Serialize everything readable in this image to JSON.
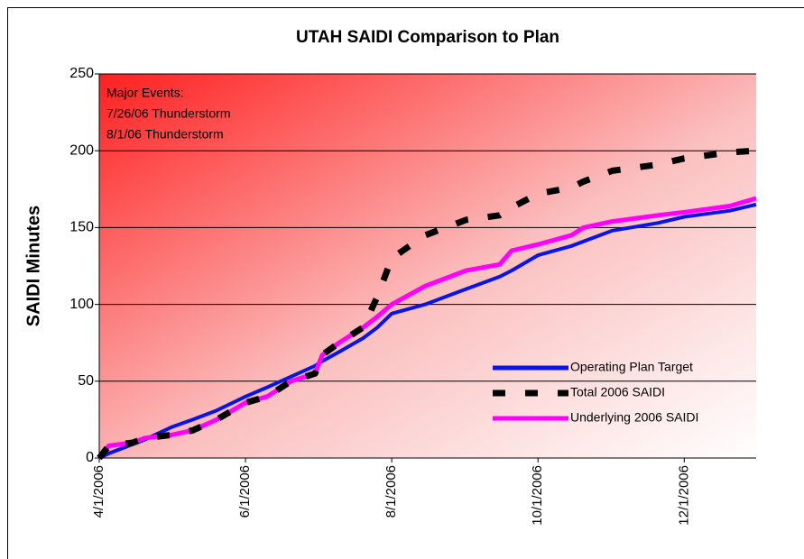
{
  "chart_data": {
    "type": "line",
    "title": "UTAH SAIDI Comparison to Plan",
    "ylabel": "SAIDI Minutes",
    "annotations": [
      "Major Events:",
      "7/26/06 Thunderstorm",
      "8/1/06 Thunderstorm"
    ],
    "x": [
      "4/1/2006",
      "4/5/2006",
      "4/15/2006",
      "4/20/2006",
      "5/1/2006",
      "5/10/2006",
      "5/20/2006",
      "6/1/2006",
      "6/10/2006",
      "6/20/2006",
      "6/30/2006",
      "7/3/2006",
      "7/10/2006",
      "7/20/2006",
      "7/26/2006",
      "8/1/2006",
      "8/15/2006",
      "9/1/2006",
      "9/15/2006",
      "9/20/2006",
      "10/1/2006",
      "10/15/2006",
      "10/20/2006",
      "11/1/2006",
      "11/20/2006",
      "12/1/2006",
      "12/20/2006",
      "12/31/2006"
    ],
    "series": [
      {
        "name": "Operating Plan Target",
        "color": "#0a14e6",
        "style": "solid",
        "values": [
          0,
          3,
          9,
          12,
          20,
          25,
          31,
          40,
          46,
          53,
          60,
          63,
          69,
          78,
          85,
          94,
          100,
          110,
          118,
          122,
          132,
          138,
          141,
          148,
          153,
          157,
          161,
          165
        ]
      },
      {
        "name": "Total 2006 SAIDI",
        "color": "#000000",
        "style": "dashed",
        "values": [
          0,
          8,
          10,
          13,
          15,
          18,
          25,
          36,
          40,
          50,
          55,
          67,
          75,
          85,
          105,
          130,
          145,
          155,
          158,
          163,
          172,
          176,
          180,
          187,
          191,
          195,
          199,
          200
        ]
      },
      {
        "name": "Underlying 2006 SAIDI",
        "color": "#ff00ff",
        "style": "solid",
        "values": [
          0,
          8,
          10,
          13,
          15,
          18,
          25,
          36,
          40,
          50,
          55,
          67,
          75,
          85,
          92,
          100,
          112,
          122,
          126,
          135,
          139,
          145,
          150,
          154,
          158,
          160,
          164,
          169
        ]
      }
    ],
    "xlim": [
      "4/1/2006",
      "12/31/2006"
    ],
    "xticks": [
      "4/1/2006",
      "6/1/2006",
      "8/1/2006",
      "10/1/2006",
      "12/1/2006"
    ],
    "ylim": [
      0,
      250
    ],
    "yticks": [
      0,
      50,
      100,
      150,
      200,
      250
    ],
    "grid": true,
    "legend": "lower right"
  }
}
